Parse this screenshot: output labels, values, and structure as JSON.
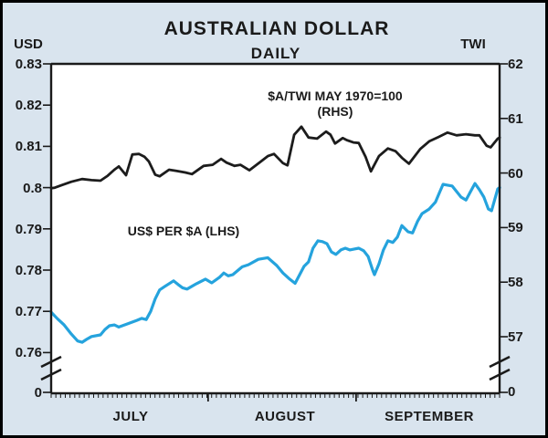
{
  "header": {
    "title": "AUSTRALIAN DOLLAR",
    "subtitle": "DAILY"
  },
  "annotations": {
    "rhs_line1": "$A/TWI MAY 1970=100",
    "rhs_line2": "(RHS)",
    "lhs": "US$ PER $A (LHS)"
  },
  "colors": {
    "background": "#d9e4ee",
    "plot_background": "#ffffff",
    "border": "#000000",
    "axis": "#1a1a1a",
    "usd_line": "#25a3dd",
    "twi_line": "#1c1c1c"
  },
  "chart_data": {
    "type": "line",
    "title": "AUSTRALIAN DOLLAR",
    "subtitle": "DAILY",
    "grid": false,
    "x_axis": {
      "months": [
        "JULY",
        "AUGUST",
        "SEPTEMBER"
      ],
      "month_boundary_t": [
        0.35,
        0.68
      ],
      "minor_tick_count": 95
    },
    "left_axis": {
      "unit": "USD",
      "ticks": [
        "0.83",
        "0.82",
        "0.81",
        "0.8",
        "0.79",
        "0.78",
        "0.77",
        "0.76"
      ],
      "tick_values": [
        0.83,
        0.82,
        0.81,
        0.8,
        0.79,
        0.78,
        0.77,
        0.76
      ],
      "zero_label": "0",
      "range": [
        0.76,
        0.83
      ],
      "axis_break": true
    },
    "right_axis": {
      "unit": "TWI",
      "ticks": [
        "62",
        "61",
        "60",
        "59",
        "58",
        "57"
      ],
      "tick_values": [
        62,
        61,
        60,
        59,
        58,
        57
      ],
      "zero_label": "0",
      "range": [
        57,
        62
      ],
      "axis_break": true
    },
    "series": [
      {
        "name": "US$ PER $A (LHS)",
        "axis": "left",
        "color": "#25a3dd",
        "points": [
          [
            0.0,
            0.7698
          ],
          [
            0.014,
            0.7682
          ],
          [
            0.029,
            0.7667
          ],
          [
            0.045,
            0.7645
          ],
          [
            0.059,
            0.7628
          ],
          [
            0.069,
            0.7625
          ],
          [
            0.079,
            0.7632
          ],
          [
            0.09,
            0.7639
          ],
          [
            0.11,
            0.7643
          ],
          [
            0.12,
            0.7656
          ],
          [
            0.13,
            0.7665
          ],
          [
            0.141,
            0.7667
          ],
          [
            0.151,
            0.7662
          ],
          [
            0.171,
            0.767
          ],
          [
            0.191,
            0.7678
          ],
          [
            0.202,
            0.7683
          ],
          [
            0.212,
            0.768
          ],
          [
            0.222,
            0.77
          ],
          [
            0.232,
            0.773
          ],
          [
            0.242,
            0.7752
          ],
          [
            0.253,
            0.776
          ],
          [
            0.273,
            0.7774
          ],
          [
            0.283,
            0.7765
          ],
          [
            0.293,
            0.7757
          ],
          [
            0.303,
            0.7754
          ],
          [
            0.324,
            0.7767
          ],
          [
            0.344,
            0.7778
          ],
          [
            0.358,
            0.7769
          ],
          [
            0.375,
            0.7782
          ],
          [
            0.385,
            0.7793
          ],
          [
            0.395,
            0.7786
          ],
          [
            0.405,
            0.7789
          ],
          [
            0.426,
            0.7808
          ],
          [
            0.44,
            0.7813
          ],
          [
            0.462,
            0.7826
          ],
          [
            0.483,
            0.783
          ],
          [
            0.503,
            0.7811
          ],
          [
            0.517,
            0.7793
          ],
          [
            0.532,
            0.7778
          ],
          [
            0.544,
            0.7768
          ],
          [
            0.564,
            0.7809
          ],
          [
            0.574,
            0.782
          ],
          [
            0.584,
            0.7853
          ],
          [
            0.595,
            0.7871
          ],
          [
            0.605,
            0.7869
          ],
          [
            0.615,
            0.7864
          ],
          [
            0.625,
            0.7844
          ],
          [
            0.635,
            0.7838
          ],
          [
            0.646,
            0.7849
          ],
          [
            0.656,
            0.7853
          ],
          [
            0.666,
            0.7849
          ],
          [
            0.676,
            0.7851
          ],
          [
            0.686,
            0.7853
          ],
          [
            0.697,
            0.7847
          ],
          [
            0.707,
            0.7833
          ],
          [
            0.717,
            0.78
          ],
          [
            0.721,
            0.7789
          ],
          [
            0.731,
            0.7815
          ],
          [
            0.741,
            0.7849
          ],
          [
            0.751,
            0.7871
          ],
          [
            0.762,
            0.7867
          ],
          [
            0.772,
            0.788
          ],
          [
            0.782,
            0.7908
          ],
          [
            0.796,
            0.7893
          ],
          [
            0.806,
            0.789
          ],
          [
            0.817,
            0.7918
          ],
          [
            0.827,
            0.7937
          ],
          [
            0.843,
            0.7948
          ],
          [
            0.857,
            0.7965
          ],
          [
            0.866,
            0.7988
          ],
          [
            0.874,
            0.8008
          ],
          [
            0.884,
            0.8006
          ],
          [
            0.894,
            0.8004
          ],
          [
            0.914,
            0.7977
          ],
          [
            0.925,
            0.797
          ],
          [
            0.935,
            0.799
          ],
          [
            0.945,
            0.801
          ],
          [
            0.955,
            0.7995
          ],
          [
            0.965,
            0.7977
          ],
          [
            0.975,
            0.7948
          ],
          [
            0.982,
            0.7944
          ],
          [
            0.996,
            0.7997
          ],
          [
            1.0,
            0.8
          ]
        ]
      },
      {
        "name": "$A/TWI MAY 1970=100 (RHS)",
        "axis": "right",
        "color": "#1c1c1c",
        "points": [
          [
            0.0,
            59.72
          ],
          [
            0.008,
            59.73
          ],
          [
            0.024,
            59.78
          ],
          [
            0.045,
            59.84
          ],
          [
            0.069,
            59.89
          ],
          [
            0.09,
            59.87
          ],
          [
            0.11,
            59.86
          ],
          [
            0.126,
            59.95
          ],
          [
            0.141,
            60.06
          ],
          [
            0.151,
            60.12
          ],
          [
            0.167,
            59.96
          ],
          [
            0.181,
            60.34
          ],
          [
            0.196,
            60.35
          ],
          [
            0.208,
            60.3
          ],
          [
            0.218,
            60.21
          ],
          [
            0.232,
            59.97
          ],
          [
            0.242,
            59.94
          ],
          [
            0.263,
            60.06
          ],
          [
            0.279,
            60.04
          ],
          [
            0.299,
            60.01
          ],
          [
            0.314,
            59.98
          ],
          [
            0.34,
            60.13
          ],
          [
            0.36,
            60.15
          ],
          [
            0.379,
            60.26
          ],
          [
            0.391,
            60.19
          ],
          [
            0.409,
            60.13
          ],
          [
            0.422,
            60.15
          ],
          [
            0.442,
            60.05
          ],
          [
            0.466,
            60.2
          ],
          [
            0.483,
            60.31
          ],
          [
            0.497,
            60.35
          ],
          [
            0.517,
            60.18
          ],
          [
            0.527,
            60.14
          ],
          [
            0.542,
            60.7
          ],
          [
            0.558,
            60.85
          ],
          [
            0.574,
            60.65
          ],
          [
            0.593,
            60.63
          ],
          [
            0.613,
            60.76
          ],
          [
            0.623,
            60.7
          ],
          [
            0.633,
            60.54
          ],
          [
            0.65,
            60.64
          ],
          [
            0.66,
            60.6
          ],
          [
            0.674,
            60.56
          ],
          [
            0.686,
            60.55
          ],
          [
            0.701,
            60.3
          ],
          [
            0.713,
            60.03
          ],
          [
            0.731,
            60.31
          ],
          [
            0.751,
            60.45
          ],
          [
            0.768,
            60.4
          ],
          [
            0.782,
            60.28
          ],
          [
            0.798,
            60.17
          ],
          [
            0.823,
            60.44
          ],
          [
            0.843,
            60.58
          ],
          [
            0.864,
            60.66
          ],
          [
            0.884,
            60.74
          ],
          [
            0.904,
            60.69
          ],
          [
            0.925,
            60.71
          ],
          [
            0.945,
            60.69
          ],
          [
            0.955,
            60.69
          ],
          [
            0.971,
            60.5
          ],
          [
            0.98,
            60.47
          ],
          [
            0.996,
            60.63
          ],
          [
            1.0,
            60.65
          ]
        ]
      }
    ]
  }
}
